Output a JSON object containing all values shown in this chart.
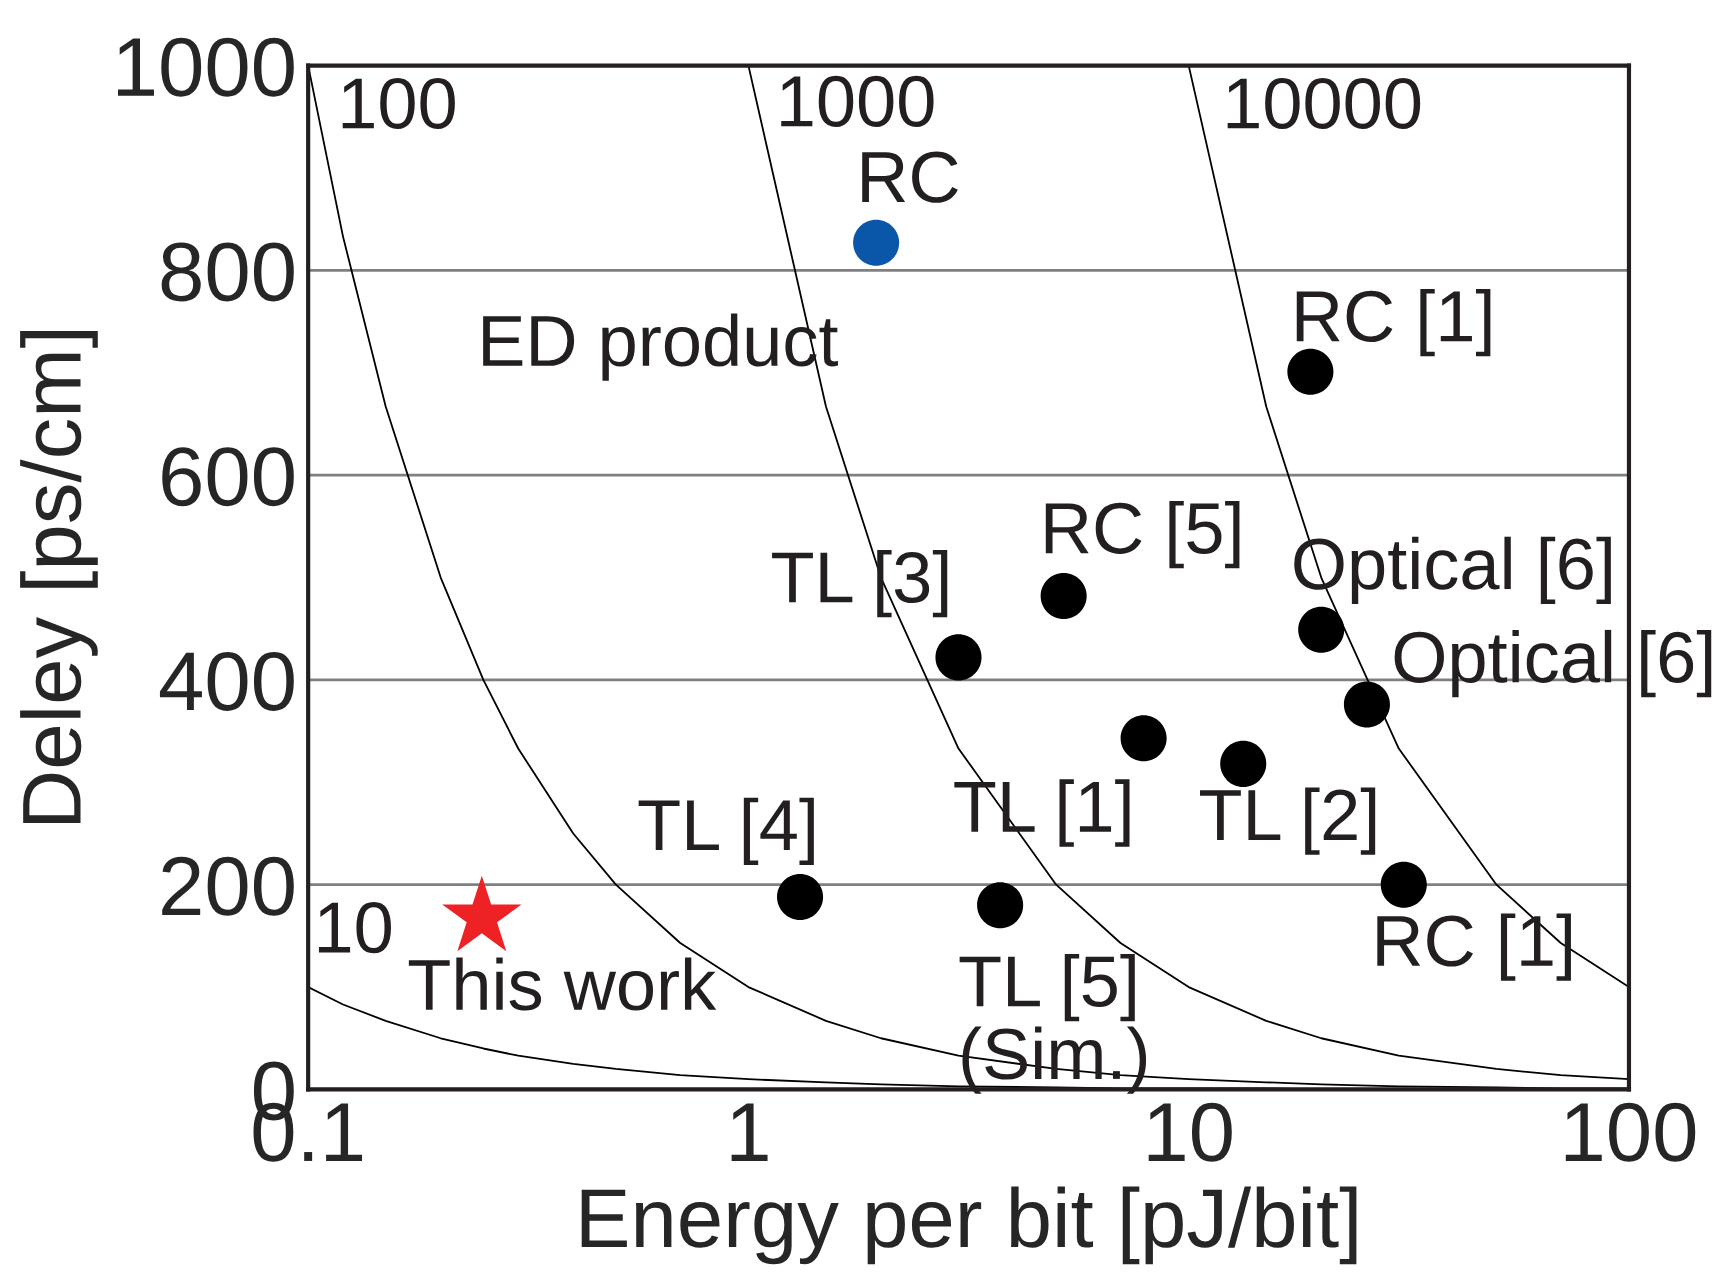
{
  "chart_data": {
    "type": "scatter",
    "xlabel": "Energy per bit [pJ/bit]",
    "ylabel": "Deley [ps/cm]",
    "log": "x",
    "xlim": [
      0.1,
      100
    ],
    "ylim": [
      0,
      1000
    ],
    "xticks": [
      {
        "value": 0.1,
        "label": "0.1"
      },
      {
        "value": 1,
        "label": "1"
      },
      {
        "value": 10,
        "label": "10"
      },
      {
        "value": 100,
        "label": "100"
      }
    ],
    "yticks": [
      0,
      200,
      400,
      600,
      800,
      1000
    ],
    "grid": "y",
    "legend": false,
    "series": [
      {
        "type": "line",
        "color": "#000000",
        "marker": "none",
        "line_style": "solid",
        "x": [
          0.1,
          0.12,
          0.15,
          0.2,
          0.25,
          0.3,
          0.4,
          0.5,
          0.7,
          1,
          1.5,
          2,
          3,
          5,
          7,
          10,
          15,
          20,
          30,
          50,
          70,
          100
        ],
        "values": [
          100,
          83,
          67,
          50,
          40,
          33,
          25,
          20,
          14,
          10,
          7,
          5,
          3,
          2,
          1,
          1,
          1,
          0,
          0,
          0,
          0,
          0
        ]
      },
      {
        "type": "line",
        "color": "#000000",
        "marker": "none",
        "line_style": "solid",
        "x": [
          0.1,
          0.12,
          0.15,
          0.2,
          0.25,
          0.3,
          0.4,
          0.5,
          0.7,
          1,
          1.5,
          2,
          3,
          5,
          7,
          10,
          15,
          20,
          30,
          50,
          70,
          100
        ],
        "values": [
          1000,
          833,
          667,
          500,
          400,
          333,
          250,
          200,
          143,
          100,
          67,
          50,
          33,
          20,
          14,
          10,
          7,
          5,
          3,
          2,
          1,
          1
        ]
      },
      {
        "type": "line",
        "color": "#000000",
        "marker": "none",
        "line_style": "solid",
        "x": [
          1,
          1.5,
          2,
          3,
          5,
          7,
          10,
          15,
          20,
          30,
          50,
          70,
          100
        ],
        "values": [
          1000,
          667,
          500,
          333,
          200,
          143,
          100,
          67,
          50,
          33,
          20,
          14,
          10
        ]
      },
      {
        "type": "line",
        "color": "#000000",
        "marker": "none",
        "line_style": "solid",
        "x": [
          10,
          15,
          20,
          30,
          50,
          70,
          100
        ],
        "values": [
          1000,
          667,
          500,
          333,
          200,
          143,
          100
        ]
      },
      {
        "color": "#000000",
        "marker": "circle",
        "x": [
          18.9,
          5.2,
          3.0,
          20.0,
          25.4,
          7.9,
          13.3,
          1.31,
          3.73,
          30.8
        ],
        "values": [
          701,
          482,
          422,
          449,
          376,
          343,
          318,
          188,
          180,
          200
        ]
      },
      {
        "color": "#0a56a8",
        "marker": "circle",
        "x": [
          1.95
        ],
        "values": [
          827
        ]
      },
      {
        "color": "#ee2124",
        "marker": "star",
        "x": [
          0.248
        ],
        "values": [
          168
        ]
      }
    ],
    "annotations": [
      "100",
      "1000",
      "10000",
      "10",
      "ED product",
      "RC",
      "RC [1]",
      "RC [5]",
      "TL [3]",
      "Optical [6]",
      "Optical [6]",
      "TL [1]",
      "TL [2]",
      "TL [4]",
      "TL [5]\n(Sim.)",
      "RC [1]",
      "This work"
    ]
  }
}
